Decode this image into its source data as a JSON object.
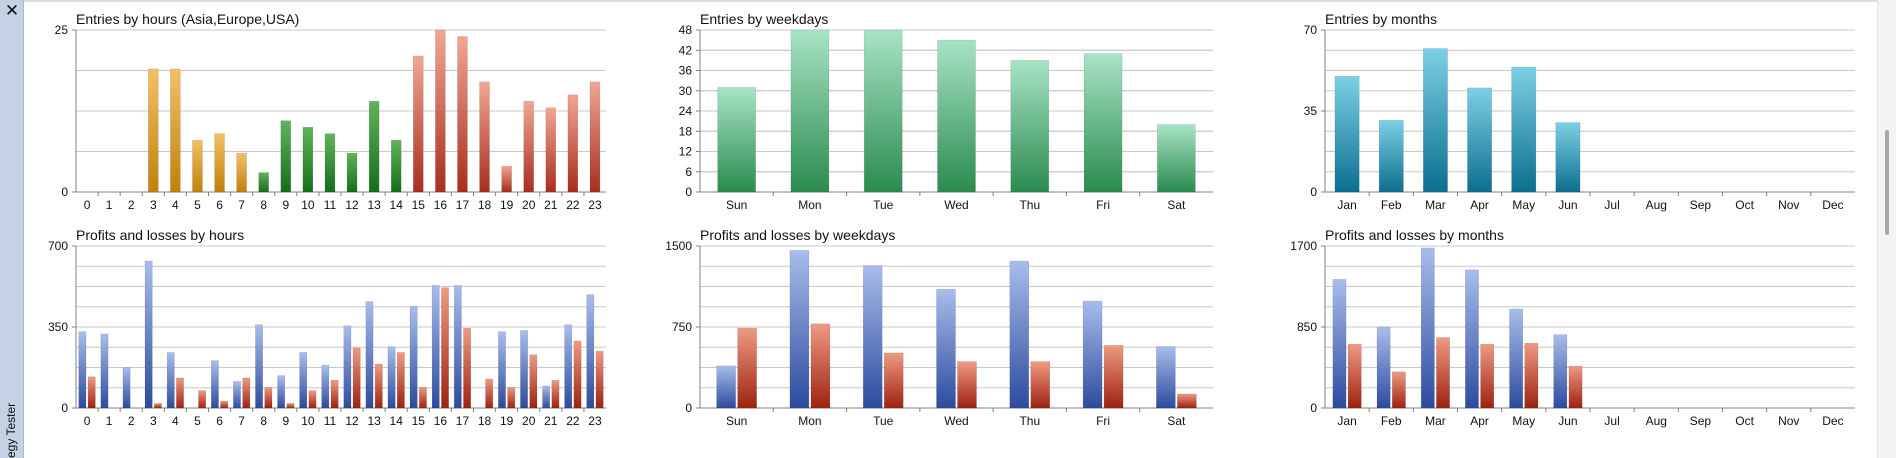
{
  "window": {
    "panel_label": "egy Tester",
    "close_glyph": "✕",
    "close_icon": "close-icon"
  },
  "colors": {
    "asia": [
      "#f3c067",
      "#c0810a"
    ],
    "europe": [
      "#61b35d",
      "#166e1a"
    ],
    "usa": [
      "#f0a792",
      "#a92d1f"
    ],
    "weekday_entries": [
      "#a8e3c6",
      "#2a8b4e"
    ],
    "month_entries": [
      "#7dd0e5",
      "#0b6f8f"
    ],
    "profit": [
      "#a8bdeb",
      "#2c4b9e"
    ],
    "loss": [
      "#ee9a82",
      "#9e2210"
    ],
    "grid": "#c8c8c8",
    "axis": "#808080"
  },
  "chart_data": [
    {
      "id": "entries-hours",
      "type": "bar",
      "title": "Entries by hours (Asia,Europe,USA)",
      "categories": [
        "0",
        "1",
        "2",
        "3",
        "4",
        "5",
        "6",
        "7",
        "8",
        "9",
        "10",
        "11",
        "12",
        "13",
        "14",
        "15",
        "16",
        "17",
        "18",
        "19",
        "20",
        "21",
        "22",
        "23"
      ],
      "series": [
        {
          "values": [
            0,
            0,
            0,
            19,
            19,
            8,
            9,
            6,
            3,
            11,
            10,
            9,
            6,
            14,
            8,
            21,
            25,
            24,
            17,
            4,
            14,
            13,
            15,
            17
          ]
        }
      ],
      "bar_groups": {
        "asia": [
          0,
          7
        ],
        "europe": [
          8,
          14
        ],
        "usa": [
          15,
          23
        ]
      },
      "ylim": [
        0,
        25
      ],
      "yticks": [
        0,
        25
      ],
      "grid": true
    },
    {
      "id": "entries-weekdays",
      "type": "bar",
      "title": "Entries by weekdays",
      "categories": [
        "Sun",
        "Mon",
        "Tue",
        "Wed",
        "Thu",
        "Fri",
        "Sat"
      ],
      "series": [
        {
          "values": [
            31,
            49,
            48,
            45,
            39,
            41,
            20
          ]
        }
      ],
      "ylim": [
        0,
        48
      ],
      "yticks": [
        0,
        6,
        12,
        18,
        24,
        30,
        36,
        42,
        48
      ],
      "grid": true
    },
    {
      "id": "entries-months",
      "type": "bar",
      "title": "Entries by months",
      "categories": [
        "Jan",
        "Feb",
        "Mar",
        "Apr",
        "May",
        "Jun",
        "Jul",
        "Aug",
        "Sep",
        "Oct",
        "Nov",
        "Dec"
      ],
      "series": [
        {
          "values": [
            50,
            31,
            62,
            45,
            54,
            30,
            0,
            0,
            0,
            0,
            0,
            0
          ]
        }
      ],
      "ylim": [
        0,
        70
      ],
      "yticks": [
        0,
        35,
        70
      ],
      "grid": true
    },
    {
      "id": "pl-hours",
      "type": "bar",
      "title": "Profits and losses by hours",
      "categories": [
        "0",
        "1",
        "2",
        "3",
        "4",
        "5",
        "6",
        "7",
        "8",
        "9",
        "10",
        "11",
        "12",
        "13",
        "14",
        "15",
        "16",
        "17",
        "18",
        "19",
        "20",
        "21",
        "22",
        "23"
      ],
      "series": [
        {
          "values": [
            330,
            320,
            175,
            635,
            240,
            0,
            205,
            115,
            360,
            140,
            240,
            185,
            355,
            460,
            265,
            440,
            530,
            530,
            0,
            330,
            335,
            95,
            360,
            490
          ]
        },
        {
          "values": [
            135,
            0,
            0,
            20,
            130,
            75,
            30,
            130,
            90,
            20,
            75,
            120,
            260,
            190,
            240,
            90,
            520,
            345,
            125,
            90,
            230,
            120,
            290,
            245
          ]
        }
      ],
      "ylim": [
        0,
        700
      ],
      "yticks": [
        0,
        350,
        700
      ],
      "grid": true
    },
    {
      "id": "pl-weekdays",
      "type": "bar",
      "title": "Profits and losses by weekdays",
      "categories": [
        "Sun",
        "Mon",
        "Tue",
        "Wed",
        "Thu",
        "Fri",
        "Sat"
      ],
      "series": [
        {
          "values": [
            390,
            1460,
            1320,
            1100,
            1360,
            990,
            570
          ]
        },
        {
          "values": [
            740,
            780,
            510,
            430,
            430,
            580,
            130
          ]
        }
      ],
      "ylim": [
        0,
        1500
      ],
      "yticks": [
        0,
        750,
        1500
      ],
      "grid": true
    },
    {
      "id": "pl-months",
      "type": "bar",
      "title": "Profits and losses by months",
      "categories": [
        "Jan",
        "Feb",
        "Mar",
        "Apr",
        "May",
        "Jun",
        "Jul",
        "Aug",
        "Sep",
        "Oct",
        "Nov",
        "Dec"
      ],
      "series": [
        {
          "values": [
            1350,
            850,
            1680,
            1450,
            1040,
            770,
            0,
            0,
            0,
            0,
            0,
            0
          ]
        },
        {
          "values": [
            670,
            380,
            740,
            670,
            680,
            440,
            0,
            0,
            0,
            0,
            0,
            0
          ]
        }
      ],
      "ylim": [
        0,
        1700
      ],
      "yticks": [
        0,
        850,
        1700
      ],
      "grid": true
    }
  ]
}
